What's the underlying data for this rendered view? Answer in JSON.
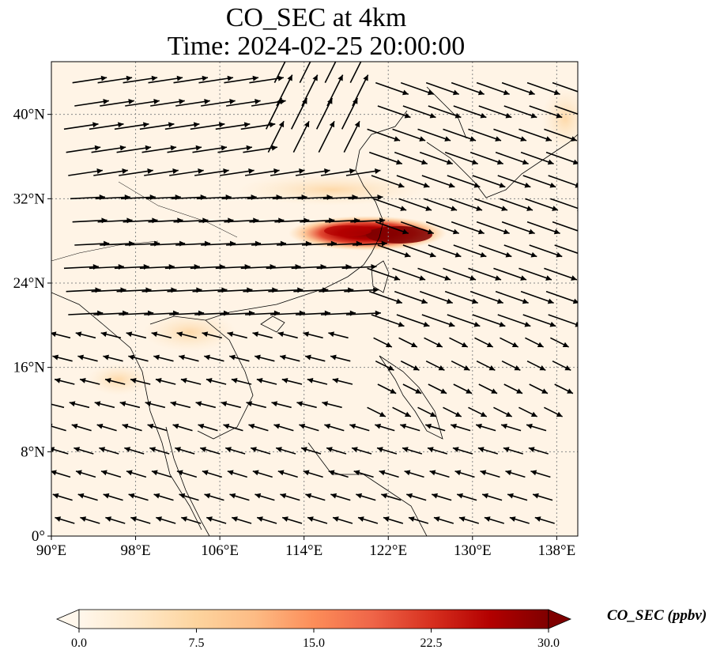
{
  "title": {
    "line1": "CO_SEC at 4km",
    "line2": "Time: 2024-02-25 20:00:00"
  },
  "map": {
    "projection": "PlateCarree",
    "lon_range": [
      90,
      140
    ],
    "lat_range": [
      0,
      45
    ],
    "gridlines": "dotted grey",
    "lon_ticks": [
      {
        "value": 90,
        "label": "90°E"
      },
      {
        "value": 98,
        "label": "98°E"
      },
      {
        "value": 106,
        "label": "106°E"
      },
      {
        "value": 114,
        "label": "114°E"
      },
      {
        "value": 122,
        "label": "122°E"
      },
      {
        "value": 130,
        "label": "130°E"
      },
      {
        "value": 138,
        "label": "138°E"
      }
    ],
    "lat_ticks": [
      {
        "value": 0,
        "label": "0°"
      },
      {
        "value": 8,
        "label": "8°N"
      },
      {
        "value": 16,
        "label": "16°N"
      },
      {
        "value": 24,
        "label": "24°N"
      },
      {
        "value": 32,
        "label": "32°N"
      },
      {
        "value": 40,
        "label": "40°N"
      }
    ],
    "colormap": "OrRd",
    "plume_max_region": {
      "lon": [
        116,
        126
      ],
      "lat": [
        28,
        30
      ]
    },
    "wind_vectors": "black arrows, strong westerlies north of 20°N, weak easterlies to the south"
  },
  "colorbar": {
    "title": "CO_SEC (ppbv)",
    "min": 0.0,
    "max": 30.0,
    "extend": "both",
    "ticks": [
      "0.0",
      "7.5",
      "15.0",
      "22.5",
      "30.0"
    ],
    "colors": [
      "#fff7ec",
      "#fee8c8",
      "#fdd49e",
      "#fdbb84",
      "#fc8d59",
      "#ef6548",
      "#d7301f",
      "#b30000",
      "#7f0000"
    ]
  }
}
